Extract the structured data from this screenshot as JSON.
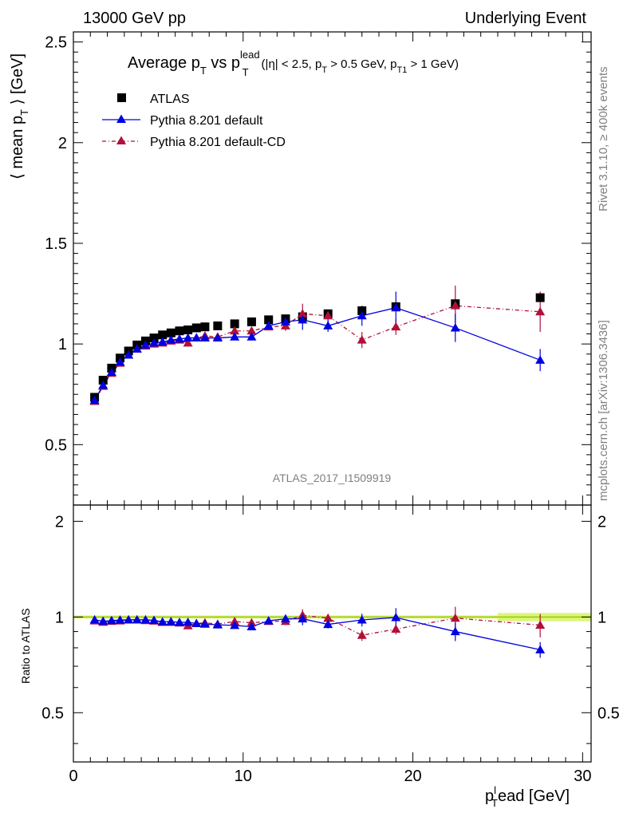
{
  "header": {
    "left": "13000 GeV pp",
    "right": "Underlying Event"
  },
  "side": {
    "rivet": "Rivet 3.1.10, ≥ 400k events",
    "mcplots": "mcplots.cern.ch [arXiv:1306.3436]"
  },
  "plot_title": {
    "main_a": "Average p",
    "sub_t1": "T",
    "main_b": " vs p",
    "sup_lead": "lead",
    "sub_t2": "T",
    "cuts_a": "(|η| < 2.5, p",
    "sub_t3": "T",
    "cuts_b": " > 0.5 GeV, p",
    "sub_t1b": "T1",
    "cuts_c": " > 1 GeV)"
  },
  "watermark": "ATLAS_2017_I1509919",
  "axes": {
    "ylabel_a": "⟨ mean p",
    "ylabel_sub": "T",
    "ylabel_b": " ⟩ [GeV]",
    "ratio_ylabel": "Ratio to ATLAS",
    "xlabel_a": "p",
    "xlabel_sup": "l",
    "xlabel_sub": "T",
    "xlabel_b": "ead [GeV]",
    "main_yticks": [
      "0.5",
      "1",
      "1.5",
      "2",
      "2.5"
    ],
    "ratio_yticks": [
      "0.5",
      "1",
      "2"
    ],
    "xticks": [
      "0",
      "10",
      "20",
      "30"
    ]
  },
  "legend": {
    "atlas": "ATLAS",
    "default": "Pythia 8.201 default",
    "cd": "Pythia 8.201 default-CD"
  },
  "colors": {
    "atlas": "#000000",
    "default": "#0000e0",
    "cd": "#b0103a",
    "band": "#d8f570",
    "ratio_line": "#9cc700"
  },
  "chart_data": {
    "type": "scatter",
    "xlim": [
      0,
      30.5
    ],
    "ylim": [
      0.2,
      2.55
    ],
    "ratio_ylim": [
      0.35,
      2.25
    ],
    "x": [
      1.25,
      1.75,
      2.25,
      2.75,
      3.25,
      3.75,
      4.25,
      4.75,
      5.25,
      5.75,
      6.25,
      6.75,
      7.25,
      7.75,
      8.5,
      9.5,
      10.5,
      11.5,
      12.5,
      13.5,
      15.0,
      17.0,
      19.0,
      22.5,
      27.5
    ],
    "series": [
      {
        "name": "ATLAS",
        "values": [
          0.735,
          0.82,
          0.88,
          0.93,
          0.965,
          0.995,
          1.015,
          1.03,
          1.045,
          1.055,
          1.065,
          1.07,
          1.08,
          1.085,
          1.09,
          1.1,
          1.11,
          1.12,
          1.125,
          1.135,
          1.15,
          1.165,
          1.185,
          1.2,
          1.23
        ]
      },
      {
        "name": "Pythia 8.201 default",
        "values": [
          0.72,
          0.795,
          0.86,
          0.91,
          0.945,
          0.975,
          0.995,
          1.005,
          1.01,
          1.02,
          1.025,
          1.03,
          1.03,
          1.03,
          1.03,
          1.035,
          1.035,
          1.09,
          1.11,
          1.12,
          1.09,
          1.14,
          1.18,
          1.08,
          0.92
        ],
        "errors": [
          0.005,
          0.005,
          0.005,
          0.005,
          0.005,
          0.005,
          0.006,
          0.006,
          0.006,
          0.007,
          0.007,
          0.008,
          0.008,
          0.009,
          0.01,
          0.012,
          0.014,
          0.018,
          0.025,
          0.05,
          0.03,
          0.05,
          0.08,
          0.07,
          0.055
        ],
        "ratio": [
          0.98,
          0.97,
          0.975,
          0.978,
          0.98,
          0.98,
          0.98,
          0.976,
          0.966,
          0.967,
          0.962,
          0.963,
          0.954,
          0.95,
          0.945,
          0.941,
          0.932,
          0.973,
          0.987,
          0.987,
          0.948,
          0.979,
          0.996,
          0.9,
          0.789
        ],
        "ratio_errors": [
          0.005,
          0.005,
          0.005,
          0.005,
          0.005,
          0.005,
          0.006,
          0.006,
          0.006,
          0.007,
          0.007,
          0.008,
          0.008,
          0.009,
          0.01,
          0.012,
          0.014,
          0.018,
          0.025,
          0.045,
          0.028,
          0.045,
          0.07,
          0.06,
          0.045
        ]
      },
      {
        "name": "Pythia 8.201 default-CD",
        "values": [
          0.715,
          0.79,
          0.855,
          0.905,
          0.945,
          0.975,
          0.99,
          1.0,
          1.005,
          1.015,
          1.02,
          1.005,
          1.03,
          1.04,
          1.035,
          1.065,
          1.065,
          1.085,
          1.09,
          1.15,
          1.14,
          1.02,
          1.085,
          1.19,
          1.16
        ],
        "errors": [
          0.005,
          0.005,
          0.005,
          0.005,
          0.005,
          0.005,
          0.006,
          0.006,
          0.006,
          0.007,
          0.007,
          0.008,
          0.008,
          0.009,
          0.01,
          0.012,
          0.014,
          0.018,
          0.025,
          0.05,
          0.03,
          0.04,
          0.04,
          0.1,
          0.1
        ],
        "ratio": [
          0.973,
          0.963,
          0.97,
          0.973,
          0.979,
          0.98,
          0.975,
          0.971,
          0.962,
          0.962,
          0.958,
          0.939,
          0.954,
          0.959,
          0.95,
          0.968,
          0.959,
          0.969,
          0.969,
          1.013,
          0.991,
          0.876,
          0.916,
          0.992,
          0.943
        ],
        "ratio_errors": [
          0.005,
          0.005,
          0.005,
          0.005,
          0.005,
          0.005,
          0.006,
          0.006,
          0.006,
          0.007,
          0.007,
          0.008,
          0.008,
          0.009,
          0.01,
          0.012,
          0.014,
          0.018,
          0.025,
          0.045,
          0.028,
          0.035,
          0.035,
          0.085,
          0.08
        ]
      }
    ]
  }
}
